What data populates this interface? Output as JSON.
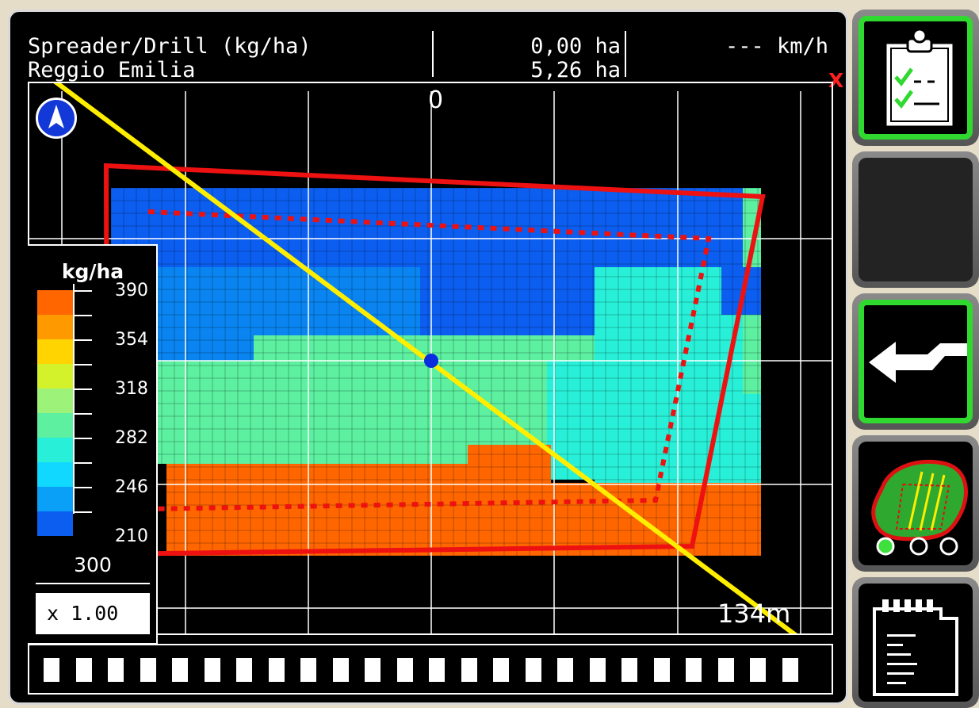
{
  "header": {
    "mode": "Spreader/Drill (kg/ha)",
    "location": "Reggio Emilia",
    "area_worked": "0,00 ha",
    "area_total": "5,26 ha",
    "speed": "--- km/h",
    "status_mark": "X"
  },
  "map": {
    "center_label": "0",
    "scale_label": "134m",
    "legend": {
      "unit": "kg/ha",
      "values": [
        "390",
        "354",
        "318",
        "282",
        "246",
        "210"
      ],
      "colors": [
        "#ff6600",
        "#ff9900",
        "#ffd400",
        "#d4f22c",
        "#9df27a",
        "#5cf0a0",
        "#28f0d8",
        "#10d8ff",
        "#0aa0f8",
        "#0b5ef0"
      ],
      "target_rate": "300",
      "multiplier": "x  1.00"
    },
    "section_count": 24
  },
  "sidebar": {
    "buttons": [
      {
        "name": "job-checklist-button",
        "icon": "clipboard-check-icon",
        "active": true
      },
      {
        "name": "empty-button",
        "icon": "",
        "active": false
      },
      {
        "name": "back-button",
        "icon": "return-arrow-icon",
        "active": true
      },
      {
        "name": "field-guidance-button",
        "icon": "field-map-icon",
        "active": false
      },
      {
        "name": "data-card-button",
        "icon": "memory-card-icon",
        "active": false
      }
    ]
  },
  "colors": {
    "accent_green": "#2fd92f",
    "boundary_red": "#ee1111",
    "guidance_yellow": "#ffee00"
  }
}
